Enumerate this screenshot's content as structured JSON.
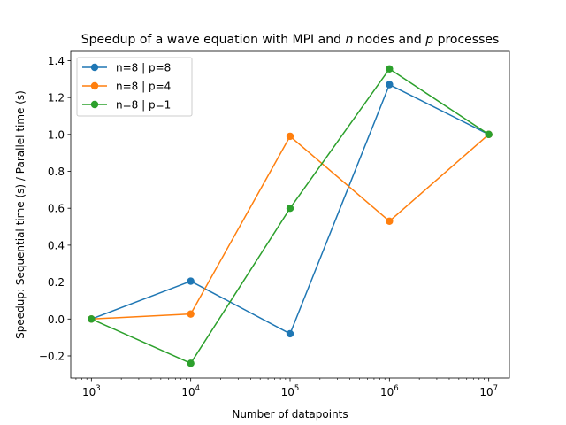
{
  "chart_data": {
    "type": "line",
    "title_prefix": "Speedup of a wave equation with MPI and ",
    "title_var_n": "n",
    "title_middle": " nodes and ",
    "title_var_p": "p",
    "title_suffix": " processes",
    "xlabel": "Number of datapoints",
    "ylabel": "Speedup: Sequential time (s) / Parallel time (s)",
    "x_scale": "log",
    "x": [
      1000,
      10000,
      100000,
      1000000,
      10000000
    ],
    "x_tick_labels": [
      {
        "base": "10",
        "exp": "3"
      },
      {
        "base": "10",
        "exp": "4"
      },
      {
        "base": "10",
        "exp": "5"
      },
      {
        "base": "10",
        "exp": "6"
      },
      {
        "base": "10",
        "exp": "7"
      }
    ],
    "ylim": [
      -0.32,
      1.45
    ],
    "y_ticks": [
      -0.2,
      0.0,
      0.2,
      0.4,
      0.6,
      0.8,
      1.0,
      1.2,
      1.4
    ],
    "y_tick_labels": [
      "−0.2",
      "0.0",
      "0.2",
      "0.4",
      "0.6",
      "0.8",
      "1.0",
      "1.2",
      "1.4"
    ],
    "grid": false,
    "legend_position": "top-left",
    "series": [
      {
        "name": "n=8 | p=8",
        "color": "#1f77b4",
        "values": [
          0.0,
          0.205,
          -0.08,
          1.27,
          1.0
        ]
      },
      {
        "name": "n=8 | p=4",
        "color": "#ff7f0e",
        "values": [
          0.0,
          0.027,
          0.99,
          0.53,
          1.0
        ]
      },
      {
        "name": "n=8 | p=1",
        "color": "#2ca02c",
        "values": [
          0.0,
          -0.24,
          0.6,
          1.355,
          1.0
        ]
      }
    ]
  }
}
